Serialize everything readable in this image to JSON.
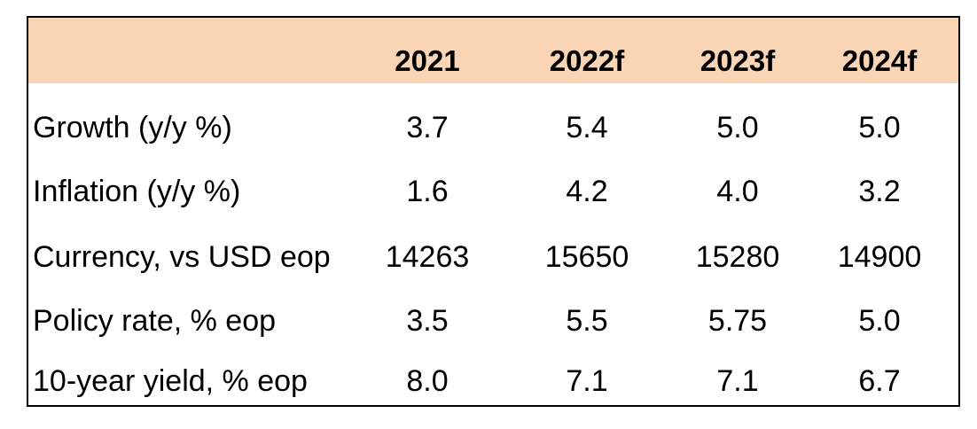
{
  "table": {
    "columns": [
      "2021",
      "2022f",
      "2023f",
      "2024f"
    ],
    "rows": [
      {
        "label": "Growth (y/y %)",
        "values": [
          "3.7",
          "5.4",
          "5.0",
          "5.0"
        ]
      },
      {
        "label": "Inflation (y/y %)",
        "values": [
          "1.6",
          "4.2",
          "4.0",
          "3.2"
        ]
      },
      {
        "label": "Currency, vs USD eop",
        "values": [
          "14263",
          "15650",
          "15280",
          "14900"
        ]
      },
      {
        "label": "Policy rate, % eop",
        "values": [
          "3.5",
          "5.5",
          "5.75",
          "5.0"
        ]
      },
      {
        "label": "10-year yield, % eop",
        "values": [
          "8.0",
          "7.1",
          "7.1",
          "6.7"
        ]
      }
    ]
  },
  "colors": {
    "header_background": "#f9d5b5",
    "border": "#000000"
  }
}
